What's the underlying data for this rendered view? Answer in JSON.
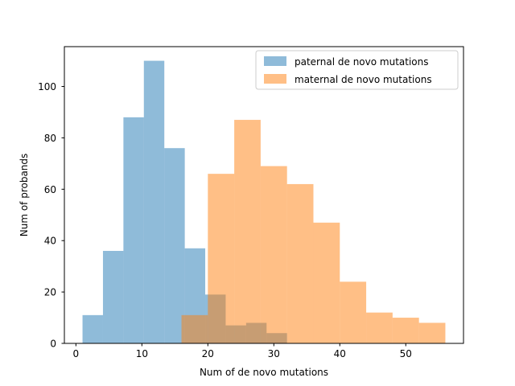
{
  "chart_data": {
    "type": "histogram",
    "title": "",
    "xlabel": "Num of de novo mutations",
    "ylabel": "Num of probands",
    "xlim": [
      -1.75,
      58.75
    ],
    "ylim": [
      0,
      115.5
    ],
    "xticks": [
      0,
      10,
      20,
      30,
      40,
      50
    ],
    "yticks": [
      0,
      20,
      40,
      60,
      80,
      100
    ],
    "legend_position": "upper right",
    "alpha": 0.5,
    "series": [
      {
        "name": "paternal de novo mutations",
        "color": "#1f77b4",
        "bin_edges": [
          1,
          4.1,
          7.2,
          10.3,
          13.4,
          16.5,
          19.6,
          22.7,
          25.8,
          28.9,
          32
        ],
        "counts": [
          11,
          36,
          88,
          110,
          76,
          37,
          19,
          7,
          8,
          4
        ]
      },
      {
        "name": "maternal de novo mutations",
        "color": "#ff7f0e",
        "bin_edges": [
          16,
          20,
          24,
          28,
          32,
          36,
          40,
          44,
          48,
          52,
          56
        ],
        "counts": [
          11,
          66,
          87,
          69,
          62,
          47,
          24,
          12,
          10,
          8
        ]
      }
    ]
  }
}
